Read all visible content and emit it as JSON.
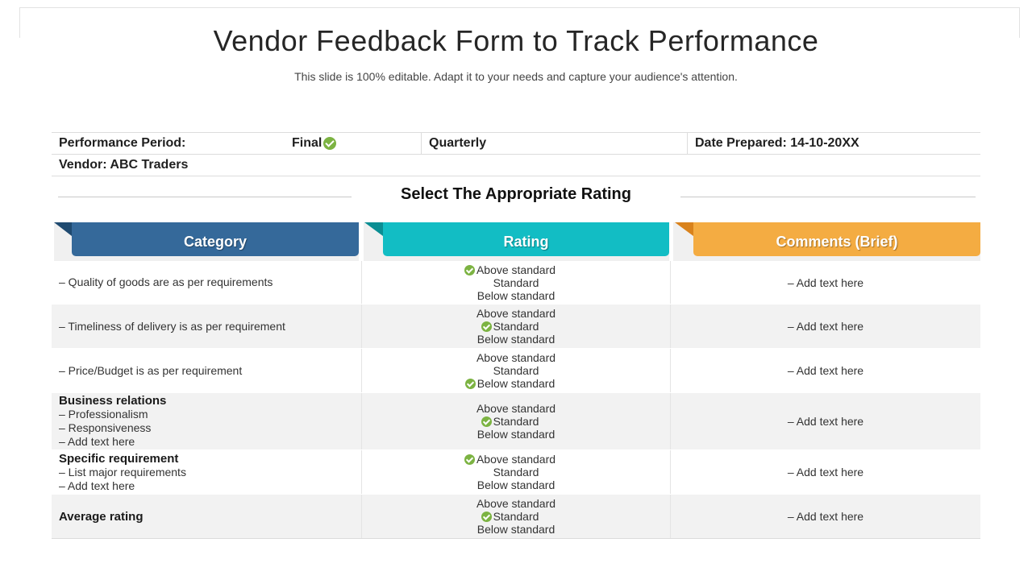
{
  "title": "Vendor Feedback Form to Track Performance",
  "subtitle": "This slide is 100% editable. Adapt it to your needs and capture your audience's attention.",
  "info": {
    "performance_period": "Performance Period:",
    "final": "Final",
    "quarterly": "Quarterly",
    "date_prepared": "Date Prepared: 14-10-20XX",
    "vendor": "Vendor: ABC Traders"
  },
  "section_title": "Select The Appropriate Rating",
  "headers": {
    "category": "Category",
    "rating": "Rating",
    "comments": "Comments (Brief)"
  },
  "colors": {
    "category": "#35699a",
    "rating": "#12bdc4",
    "comments": "#f4ac42",
    "check": "#7cb342"
  },
  "rating_options": [
    "Above standard",
    "Standard",
    "Below standard"
  ],
  "rows": [
    {
      "heading": "",
      "lines": [
        "– Quality of goods are as per requirements"
      ],
      "selected": 0,
      "comment": "– Add text here"
    },
    {
      "heading": "",
      "lines": [
        "– Timeliness of delivery is as per requirement"
      ],
      "selected": 1,
      "comment": "– Add text here"
    },
    {
      "heading": "",
      "lines": [
        "– Price/Budget is as per requirement"
      ],
      "selected": 2,
      "comment": "– Add text here"
    },
    {
      "heading": "Business relations",
      "lines": [
        "– Professionalism",
        "– Responsiveness",
        "– Add text here"
      ],
      "selected": 1,
      "comment": "– Add text here"
    },
    {
      "heading": "Specific requirement",
      "lines": [
        "– List major requirements",
        "– Add text here"
      ],
      "selected": 0,
      "comment": "– Add text here"
    },
    {
      "heading": "Average rating",
      "lines": [],
      "selected": 1,
      "comment": "– Add text here"
    }
  ]
}
